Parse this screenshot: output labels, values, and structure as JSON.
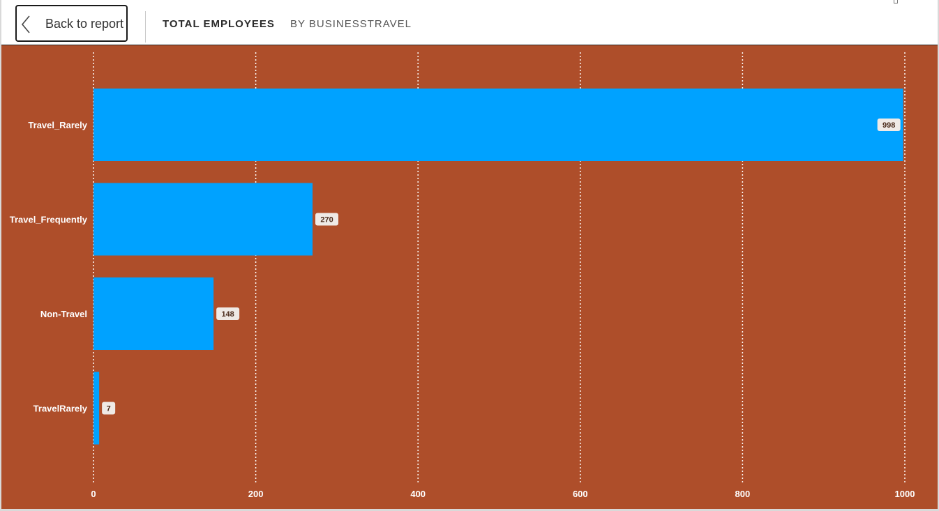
{
  "header": {
    "back_label": "Back to report",
    "title": "TOTAL EMPLOYEES",
    "subtitle": "BY BUSINESSTRAVEL",
    "back_icon": "chevron-left-icon"
  },
  "colors": {
    "plot_background": "#AE4E2A",
    "bar": "#00A2FF",
    "label_box": "#EFEAE6",
    "label_text": "#4A2A1A",
    "axis_text": "#FFFFFF",
    "gridline": "#FFFFFF"
  },
  "chart_data": {
    "type": "bar",
    "orientation": "horizontal",
    "title": "TOTAL EMPLOYEES",
    "subtitle": "BY BUSINESSTRAVEL",
    "categories": [
      "Travel_Rarely",
      "Travel_Frequently",
      "Non-Travel",
      "TravelRarely"
    ],
    "values": [
      998,
      270,
      148,
      7
    ],
    "data_labels": [
      "998",
      "270",
      "148",
      "7"
    ],
    "xlim": [
      0,
      1000
    ],
    "x_ticks": [
      0,
      200,
      400,
      600,
      800,
      1000
    ],
    "x_tick_labels": [
      "0",
      "200",
      "400",
      "600",
      "800",
      "1000"
    ],
    "grid": true,
    "grid_style": "dotted vertical",
    "legend": "none",
    "xlabel": "",
    "ylabel": ""
  }
}
